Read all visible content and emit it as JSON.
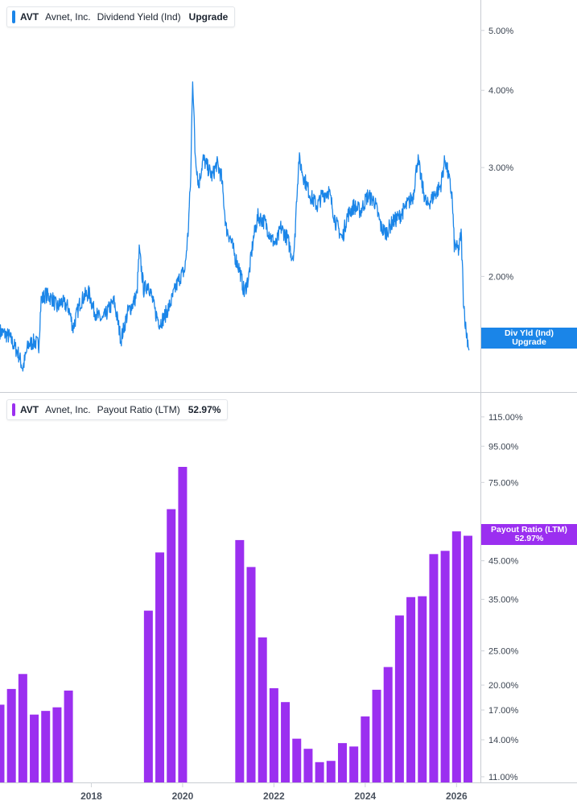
{
  "colors": {
    "yield": "#1a85e8",
    "payout": "#9b2ff0",
    "divider": "#c8ccd2",
    "grid": "#d0d4d9"
  },
  "top_legend": {
    "ticker": "AVT",
    "company": "Avnet, Inc.",
    "metric": "Dividend Yield (Ind)",
    "value": "Upgrade"
  },
  "bottom_legend": {
    "ticker": "AVT",
    "company": "Avnet, Inc.",
    "metric": "Payout Ratio (LTM)",
    "value": "52.97%"
  },
  "top_tag": {
    "line1": "Div Yld (Ind)",
    "line2": "Upgrade"
  },
  "bottom_tag": {
    "line1": "Payout Ratio (LTM)",
    "line2": "52.97%"
  },
  "chart_data": [
    {
      "type": "line",
      "series": [
        {
          "name": "Dividend Yield (Ind)"
        }
      ],
      "y_scale": "log",
      "y_ticks": [
        "5.00%",
        "4.00%",
        "3.00%",
        "2.00%"
      ],
      "y_tick_values": [
        5.0,
        4.0,
        3.0,
        2.0
      ],
      "ylim": [
        1.36,
        5.6
      ],
      "xlim": [
        2016.0,
        2026.4
      ],
      "points": [
        [
          2016.0,
          1.63
        ],
        [
          2016.2,
          1.6
        ],
        [
          2016.4,
          1.5
        ],
        [
          2016.5,
          1.42
        ],
        [
          2016.62,
          1.55
        ],
        [
          2016.75,
          1.57
        ],
        [
          2016.85,
          1.55
        ],
        [
          2016.9,
          1.83
        ],
        [
          2017.0,
          1.87
        ],
        [
          2017.15,
          1.84
        ],
        [
          2017.25,
          1.78
        ],
        [
          2017.35,
          1.82
        ],
        [
          2017.5,
          1.78
        ],
        [
          2017.6,
          1.65
        ],
        [
          2017.75,
          1.81
        ],
        [
          2017.85,
          1.86
        ],
        [
          2017.95,
          1.88
        ],
        [
          2018.05,
          1.77
        ],
        [
          2018.15,
          1.72
        ],
        [
          2018.25,
          1.7
        ],
        [
          2018.4,
          1.78
        ],
        [
          2018.5,
          1.82
        ],
        [
          2018.65,
          1.58
        ],
        [
          2018.8,
          1.75
        ],
        [
          2018.9,
          1.8
        ],
        [
          2019.0,
          1.87
        ],
        [
          2019.05,
          2.2
        ],
        [
          2019.15,
          1.9
        ],
        [
          2019.25,
          1.95
        ],
        [
          2019.4,
          1.75
        ],
        [
          2019.5,
          1.68
        ],
        [
          2019.6,
          1.72
        ],
        [
          2019.75,
          1.82
        ],
        [
          2019.85,
          1.92
        ],
        [
          2019.95,
          2.0
        ],
        [
          2020.05,
          2.05
        ],
        [
          2020.12,
          2.35
        ],
        [
          2020.18,
          2.9
        ],
        [
          2020.22,
          4.2
        ],
        [
          2020.27,
          3.2
        ],
        [
          2020.35,
          2.8
        ],
        [
          2020.45,
          3.1
        ],
        [
          2020.55,
          3.0
        ],
        [
          2020.65,
          2.9
        ],
        [
          2020.75,
          3.05
        ],
        [
          2020.85,
          2.9
        ],
        [
          2020.95,
          2.4
        ],
        [
          2021.05,
          2.3
        ],
        [
          2021.15,
          2.15
        ],
        [
          2021.25,
          2.05
        ],
        [
          2021.35,
          1.88
        ],
        [
          2021.45,
          2.0
        ],
        [
          2021.55,
          2.3
        ],
        [
          2021.65,
          2.5
        ],
        [
          2021.8,
          2.45
        ],
        [
          2021.95,
          2.3
        ],
        [
          2022.05,
          2.25
        ],
        [
          2022.15,
          2.4
        ],
        [
          2022.3,
          2.3
        ],
        [
          2022.4,
          2.15
        ],
        [
          2022.45,
          2.22
        ],
        [
          2022.5,
          2.7
        ],
        [
          2022.55,
          3.1
        ],
        [
          2022.65,
          2.9
        ],
        [
          2022.8,
          2.7
        ],
        [
          2022.95,
          2.6
        ],
        [
          2023.05,
          2.7
        ],
        [
          2023.2,
          2.75
        ],
        [
          2023.35,
          2.45
        ],
        [
          2023.5,
          2.3
        ],
        [
          2023.6,
          2.5
        ],
        [
          2023.75,
          2.6
        ],
        [
          2023.9,
          2.55
        ],
        [
          2024.05,
          2.7
        ],
        [
          2024.2,
          2.65
        ],
        [
          2024.35,
          2.4
        ],
        [
          2024.45,
          2.35
        ],
        [
          2024.6,
          2.45
        ],
        [
          2024.75,
          2.5
        ],
        [
          2024.9,
          2.6
        ],
        [
          2025.05,
          2.7
        ],
        [
          2025.15,
          3.1
        ],
        [
          2025.25,
          2.8
        ],
        [
          2025.35,
          2.6
        ],
        [
          2025.5,
          2.7
        ],
        [
          2025.65,
          2.8
        ],
        [
          2025.75,
          3.1
        ],
        [
          2025.9,
          2.7
        ],
        [
          2025.95,
          2.25
        ],
        [
          2026.05,
          2.2
        ],
        [
          2026.1,
          2.35
        ],
        [
          2026.15,
          1.85
        ],
        [
          2026.2,
          1.65
        ],
        [
          2026.28,
          1.52
        ]
      ]
    },
    {
      "type": "bar",
      "series": [
        {
          "name": "Payout Ratio (LTM)"
        }
      ],
      "y_scale": "log",
      "y_ticks": [
        "115.00%",
        "95.00%",
        "75.00%",
        "45.00%",
        "35.00%",
        "25.00%",
        "20.00%",
        "17.00%",
        "14.00%",
        "11.00%"
      ],
      "y_tick_values": [
        115,
        95,
        75,
        45,
        35,
        25,
        20,
        17,
        14,
        11
      ],
      "ylim": [
        10.6,
        125
      ],
      "x_ticks": [
        "2018",
        "2020",
        "2022",
        "2024",
        "2026"
      ],
      "x_tick_values": [
        2018,
        2020,
        2022,
        2024,
        2026
      ],
      "xlim": [
        2016.0,
        2026.4
      ],
      "bars": [
        {
          "x": 2016.0,
          "value": 17.6
        },
        {
          "x": 2016.25,
          "value": 19.5
        },
        {
          "x": 2016.5,
          "value": 21.5
        },
        {
          "x": 2016.75,
          "value": 16.5
        },
        {
          "x": 2017.0,
          "value": 16.9
        },
        {
          "x": 2017.25,
          "value": 17.3
        },
        {
          "x": 2017.5,
          "value": 19.3
        },
        {
          "x": 2019.25,
          "value": 32.5
        },
        {
          "x": 2019.5,
          "value": 47.5
        },
        {
          "x": 2019.75,
          "value": 63.0
        },
        {
          "x": 2020.0,
          "value": 83.0
        },
        {
          "x": 2021.25,
          "value": 51.5
        },
        {
          "x": 2021.5,
          "value": 43.2
        },
        {
          "x": 2021.75,
          "value": 27.3
        },
        {
          "x": 2022.0,
          "value": 19.6
        },
        {
          "x": 2022.25,
          "value": 17.9
        },
        {
          "x": 2022.5,
          "value": 14.1
        },
        {
          "x": 2022.75,
          "value": 13.2
        },
        {
          "x": 2023.0,
          "value": 12.1
        },
        {
          "x": 2023.25,
          "value": 12.2
        },
        {
          "x": 2023.5,
          "value": 13.7
        },
        {
          "x": 2023.75,
          "value": 13.4
        },
        {
          "x": 2024.0,
          "value": 16.3
        },
        {
          "x": 2024.25,
          "value": 19.4
        },
        {
          "x": 2024.5,
          "value": 22.5
        },
        {
          "x": 2024.75,
          "value": 31.5
        },
        {
          "x": 2025.0,
          "value": 35.5
        },
        {
          "x": 2025.25,
          "value": 35.7
        },
        {
          "x": 2025.5,
          "value": 47.0
        },
        {
          "x": 2025.75,
          "value": 48.0
        },
        {
          "x": 2026.0,
          "value": 54.5
        },
        {
          "x": 2026.25,
          "value": 52.97
        }
      ]
    }
  ]
}
